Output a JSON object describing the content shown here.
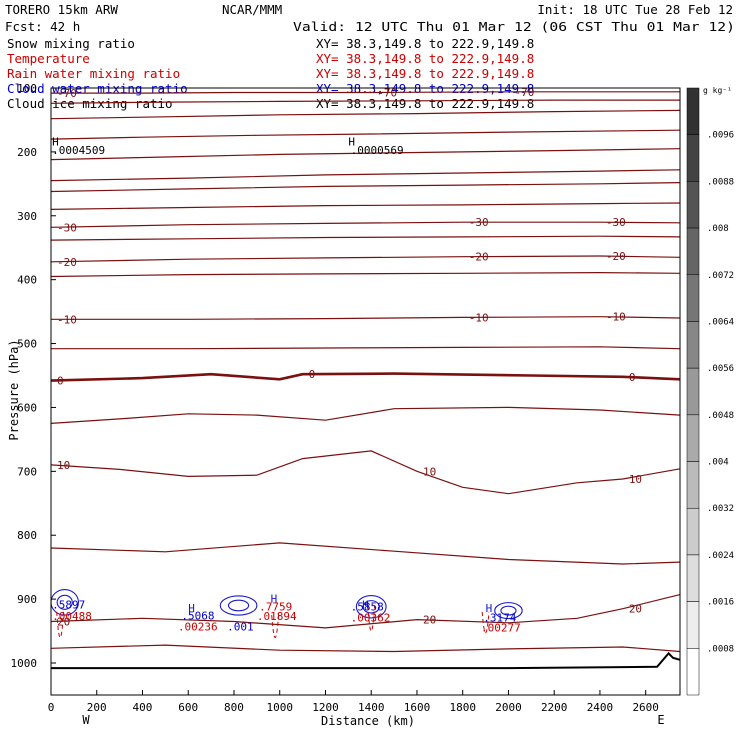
{
  "header": {
    "model": "TORERO  15km ARW",
    "center": "NCAR/MMM",
    "init": "Init: 18 UTC Tue 28 Feb 12",
    "fcst": "Fcst:   42 h",
    "valid": "Valid: 12 UTC Thu 01 Mar 12 (06 CST Thu 01 Mar 12)"
  },
  "fields": [
    {
      "label": "Snow mixing ratio",
      "xy": "XY=  38.3,149.8 to 222.9,149.8",
      "color": "#000000",
      "xy_color": "#000000"
    },
    {
      "label": "Temperature",
      "xy": "XY=  38.3,149.8 to 222.9,149.8",
      "color": "#cc0000",
      "xy_color": "#cc0000"
    },
    {
      "label": "Rain water mixing ratio",
      "xy": "XY=  38.3,149.8 to 222.9,149.8",
      "color": "#cc0000",
      "xy_color": "#cc0000"
    },
    {
      "label": "Cloud water mixing ratio",
      "xy": "XY=  38.3,149.8 to 222.9,149.8",
      "color": "#0000cc",
      "xy_color": "#0000cc"
    },
    {
      "label": "Cloud ice mixing ratio",
      "xy": "XY=  38.3,149.8 to 222.9,149.8",
      "color": "#000000",
      "xy_color": "#000000"
    }
  ],
  "chart_data": {
    "type": "contour cross-section",
    "xlabel": "Distance (km)",
    "ylabel": "Pressure (hPa)",
    "xlim": [
      0,
      2750
    ],
    "ylim": [
      1050,
      100
    ],
    "x_ticks": [
      0,
      200,
      400,
      600,
      800,
      1000,
      1200,
      1400,
      1600,
      1800,
      2000,
      2200,
      2400,
      2600
    ],
    "y_ticks": [
      100,
      200,
      300,
      400,
      500,
      600,
      700,
      800,
      900,
      1000
    ],
    "endpoint_labels": {
      "left": "W",
      "right": "E"
    },
    "temperature_contours": [
      {
        "value": -70,
        "label": "-70",
        "p": [
          [
            0,
            108
          ],
          [
            400,
            108
          ],
          [
            800,
            107
          ],
          [
            1400,
            107
          ],
          [
            2000,
            106
          ],
          [
            2750,
            106
          ]
        ]
      },
      {
        "value": -65,
        "label": "",
        "p": [
          [
            0,
            124
          ],
          [
            500,
            122
          ],
          [
            1000,
            121
          ],
          [
            1600,
            120
          ],
          [
            2200,
            119
          ],
          [
            2750,
            119
          ]
        ]
      },
      {
        "value": -60,
        "label": "",
        "p": [
          [
            0,
            148
          ],
          [
            500,
            145
          ],
          [
            1000,
            142
          ],
          [
            1600,
            140
          ],
          [
            2200,
            137
          ],
          [
            2750,
            135
          ]
        ]
      },
      {
        "value": -55,
        "label": "",
        "p": [
          [
            0,
            180
          ],
          [
            400,
            177
          ],
          [
            900,
            174
          ],
          [
            1400,
            172
          ],
          [
            2000,
            169
          ],
          [
            2750,
            166
          ]
        ]
      },
      {
        "value": -50,
        "label": "",
        "p": [
          [
            0,
            212
          ],
          [
            500,
            208
          ],
          [
            1000,
            204
          ],
          [
            1600,
            201
          ],
          [
            2200,
            198
          ],
          [
            2750,
            195
          ]
        ]
      },
      {
        "value": -45,
        "label": "",
        "p": [
          [
            0,
            245
          ],
          [
            600,
            241
          ],
          [
            1200,
            236
          ],
          [
            1800,
            233
          ],
          [
            2400,
            230
          ],
          [
            2750,
            228
          ]
        ]
      },
      {
        "value": -40,
        "label": "",
        "p": [
          [
            0,
            262
          ],
          [
            600,
            258
          ],
          [
            1200,
            254
          ],
          [
            1800,
            252
          ],
          [
            2400,
            250
          ],
          [
            2750,
            248
          ]
        ]
      },
      {
        "value": -35,
        "label": "",
        "p": [
          [
            0,
            290
          ],
          [
            600,
            287
          ],
          [
            1200,
            284
          ],
          [
            1800,
            283
          ],
          [
            2400,
            281
          ],
          [
            2750,
            280
          ]
        ]
      },
      {
        "value": -30,
        "label": "-30",
        "p": [
          [
            0,
            318
          ],
          [
            600,
            314
          ],
          [
            1200,
            312
          ],
          [
            1800,
            310
          ],
          [
            2400,
            310
          ],
          [
            2750,
            311
          ]
        ]
      },
      {
        "value": -25,
        "label": "",
        "p": [
          [
            0,
            338
          ],
          [
            600,
            336
          ],
          [
            1200,
            334
          ],
          [
            1800,
            333
          ],
          [
            2400,
            332
          ],
          [
            2750,
            333
          ]
        ]
      },
      {
        "value": -20,
        "label": "-20",
        "p": [
          [
            0,
            372
          ],
          [
            600,
            368
          ],
          [
            1200,
            366
          ],
          [
            1800,
            364
          ],
          [
            2400,
            363
          ],
          [
            2750,
            365
          ]
        ]
      },
      {
        "value": -15,
        "label": "",
        "p": [
          [
            0,
            395
          ],
          [
            600,
            392
          ],
          [
            1200,
            391
          ],
          [
            1800,
            390
          ],
          [
            2400,
            389
          ],
          [
            2750,
            390
          ]
        ]
      },
      {
        "value": -10,
        "label": "-10",
        "p": [
          [
            0,
            462
          ],
          [
            600,
            462
          ],
          [
            1200,
            461
          ],
          [
            1800,
            459
          ],
          [
            2400,
            458
          ],
          [
            2750,
            460
          ]
        ]
      },
      {
        "value": -5,
        "label": "",
        "p": [
          [
            0,
            508
          ],
          [
            600,
            508
          ],
          [
            1200,
            507
          ],
          [
            1800,
            506
          ],
          [
            2400,
            505
          ],
          [
            2750,
            508
          ]
        ]
      },
      {
        "value": 0,
        "label": "0",
        "p": [
          [
            0,
            558
          ],
          [
            400,
            554
          ],
          [
            700,
            548
          ],
          [
            1000,
            556
          ],
          [
            1100,
            548
          ],
          [
            1500,
            547
          ],
          [
            2100,
            550
          ],
          [
            2500,
            552
          ],
          [
            2750,
            556
          ]
        ]
      },
      {
        "value": 5,
        "label": "",
        "p": [
          [
            0,
            625
          ],
          [
            300,
            618
          ],
          [
            600,
            610
          ],
          [
            900,
            612
          ],
          [
            1200,
            620
          ],
          [
            1500,
            602
          ],
          [
            2000,
            600
          ],
          [
            2400,
            604
          ],
          [
            2750,
            612
          ]
        ]
      },
      {
        "value": 10,
        "label": "10",
        "p": [
          [
            0,
            690
          ],
          [
            300,
            697
          ],
          [
            600,
            708
          ],
          [
            900,
            706
          ],
          [
            1100,
            680
          ],
          [
            1400,
            668
          ],
          [
            1600,
            700
          ],
          [
            1800,
            725
          ],
          [
            2000,
            735
          ],
          [
            2300,
            718
          ],
          [
            2500,
            712
          ],
          [
            2750,
            696
          ]
        ]
      },
      {
        "value": 15,
        "label": "",
        "p": [
          [
            0,
            820
          ],
          [
            500,
            826
          ],
          [
            1000,
            812
          ],
          [
            1500,
            825
          ],
          [
            2000,
            838
          ],
          [
            2500,
            845
          ],
          [
            2750,
            842
          ]
        ]
      },
      {
        "value": 20,
        "label": "20",
        "p": [
          [
            0,
            935
          ],
          [
            400,
            930
          ],
          [
            800,
            935
          ],
          [
            1200,
            945
          ],
          [
            1600,
            932
          ],
          [
            2000,
            937
          ],
          [
            2300,
            930
          ],
          [
            2500,
            915
          ],
          [
            2750,
            893
          ]
        ]
      },
      {
        "value": 25,
        "label": "",
        "p": [
          [
            0,
            977
          ],
          [
            500,
            972
          ],
          [
            1000,
            980
          ],
          [
            1500,
            982
          ],
          [
            2000,
            978
          ],
          [
            2500,
            975
          ],
          [
            2750,
            982
          ]
        ]
      }
    ],
    "max_labels": [
      {
        "text": ".0004509",
        "x": 5,
        "p": 203,
        "color": "#000000"
      },
      {
        "text": ".0000569",
        "x": 1310,
        "p": 203,
        "color": "#000000"
      },
      {
        "text": ".5897",
        "x": 5,
        "p": 915,
        "color": "#0000cc"
      },
      {
        "text": ".00488",
        "x": 5,
        "p": 933,
        "color": "#cc0000"
      },
      {
        "text": ".5068",
        "x": 570,
        "p": 932,
        "color": "#0000cc"
      },
      {
        "text": ".00236",
        "x": 555,
        "p": 949,
        "color": "#cc0000"
      },
      {
        "text": ".001",
        "x": 770,
        "p": 949,
        "color": "#0000cc"
      },
      {
        "text": ".7759",
        "x": 910,
        "p": 918,
        "color": "#cc0000"
      },
      {
        "text": ".01894",
        "x": 900,
        "p": 933,
        "color": "#cc0000"
      },
      {
        "text": ".5858",
        "x": 1310,
        "p": 918,
        "color": "#0000cc"
      },
      {
        "text": ".00362",
        "x": 1310,
        "p": 935,
        "color": "#cc0000"
      },
      {
        "text": ".3174",
        "x": 1890,
        "p": 935,
        "color": "#0000cc"
      },
      {
        "text": ".00277",
        "x": 1880,
        "p": 951,
        "color": "#cc0000"
      }
    ],
    "high_markers": [
      {
        "x": 5,
        "p": 190
      },
      {
        "x": 1300,
        "p": 190
      },
      {
        "x": 600,
        "p": 920
      },
      {
        "x": 960,
        "p": 905
      },
      {
        "x": 1360,
        "p": 915
      },
      {
        "x": 1900,
        "p": 920
      }
    ],
    "ground": [
      [
        0,
        1008
      ],
      [
        1000,
        1008
      ],
      [
        2000,
        1008
      ],
      [
        2650,
        1006
      ],
      [
        2700,
        985
      ],
      [
        2720,
        992
      ],
      [
        2750,
        995
      ]
    ],
    "colorbar": {
      "unit": "g kg⁻¹",
      "labels": [
        ".0096",
        ".0088",
        ".008",
        ".0072",
        ".0064",
        ".0056",
        ".0048",
        ".004",
        ".0032",
        ".0024",
        ".0016",
        ".0008"
      ]
    }
  }
}
